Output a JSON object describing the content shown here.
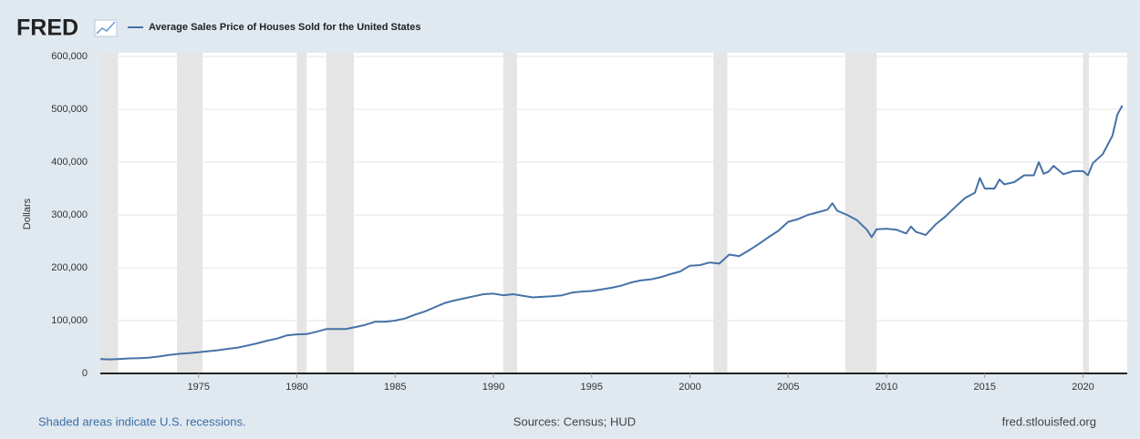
{
  "chart_data": {
    "type": "line",
    "brand": "FRED",
    "y_label": "Dollars",
    "note": "Shaded areas indicate U.S. recessions.",
    "source": "Sources: Census; HUD",
    "site": "fred.stlouisfed.org",
    "xlim": [
      1970,
      2022.25
    ],
    "xticks": [
      1975,
      1980,
      1985,
      1990,
      1995,
      2000,
      2005,
      2010,
      2015,
      2020
    ],
    "ylim": [
      0,
      600000
    ],
    "yticks": [
      0,
      {
        "value": 100000,
        "label": "100,000"
      },
      {
        "value": 200000,
        "label": "200,000"
      },
      {
        "value": 300000,
        "label": "300,000"
      },
      {
        "value": 400000,
        "label": "400,000"
      },
      {
        "value": 500000,
        "label": "500,000"
      },
      {
        "value": 600000,
        "label": "600,000"
      }
    ],
    "grid": true,
    "recessions": [
      [
        1969.9,
        1970.9
      ],
      [
        1973.9,
        1975.2
      ],
      [
        1980.0,
        1980.5
      ],
      [
        1981.5,
        1982.9
      ],
      [
        1990.5,
        1991.2
      ],
      [
        2001.2,
        2001.9
      ],
      [
        2007.9,
        2009.5
      ],
      [
        2020.0,
        2020.3
      ]
    ],
    "x": [
      1970.0,
      1970.5,
      1971.0,
      1971.5,
      1972.0,
      1972.5,
      1973.0,
      1973.5,
      1974.0,
      1974.5,
      1975.0,
      1975.5,
      1976.0,
      1976.5,
      1977.0,
      1977.5,
      1978.0,
      1978.5,
      1979.0,
      1979.5,
      1980.0,
      1980.5,
      1981.0,
      1981.5,
      1982.0,
      1982.5,
      1983.0,
      1983.5,
      1984.0,
      1984.5,
      1985.0,
      1985.5,
      1986.0,
      1986.5,
      1987.0,
      1987.5,
      1988.0,
      1988.5,
      1989.0,
      1989.5,
      1990.0,
      1990.5,
      1991.0,
      1991.5,
      1992.0,
      1992.5,
      1993.0,
      1993.5,
      1994.0,
      1994.5,
      1995.0,
      1995.5,
      1996.0,
      1996.5,
      1997.0,
      1997.5,
      1998.0,
      1998.5,
      1999.0,
      1999.5,
      2000.0,
      2000.5,
      2001.0,
      2001.5,
      2002.0,
      2002.5,
      2003.0,
      2003.5,
      2004.0,
      2004.5,
      2005.0,
      2005.5,
      2006.0,
      2006.5,
      2007.0,
      2007.25,
      2007.5,
      2008.0,
      2008.5,
      2009.0,
      2009.25,
      2009.5,
      2010.0,
      2010.5,
      2011.0,
      2011.25,
      2011.5,
      2012.0,
      2012.5,
      2013.0,
      2013.5,
      2014.0,
      2014.5,
      2014.75,
      2015.0,
      2015.5,
      2015.75,
      2016.0,
      2016.5,
      2017.0,
      2017.5,
      2017.75,
      2018.0,
      2018.25,
      2018.5,
      2019.0,
      2019.5,
      2020.0,
      2020.25,
      2020.5,
      2021.0,
      2021.5,
      2021.75,
      2022.0
    ],
    "series": [
      {
        "name": "Average Sales Price of Houses Sold for the United States",
        "color": "#4572a7",
        "values": [
          27000,
          26500,
          27500,
          28500,
          29000,
          30000,
          32000,
          35000,
          37000,
          38500,
          40000,
          42000,
          44000,
          46500,
          49000,
          53000,
          57000,
          62000,
          66000,
          72000,
          74000,
          74500,
          79000,
          84000,
          84000,
          84000,
          88000,
          92000,
          98000,
          98000,
          100000,
          104000,
          111000,
          117000,
          125000,
          133000,
          138000,
          142000,
          146000,
          150000,
          151000,
          148000,
          150000,
          147000,
          144000,
          145000,
          146000,
          148000,
          153000,
          155000,
          156000,
          159000,
          162000,
          166000,
          172000,
          176000,
          178000,
          182000,
          188000,
          193000,
          204000,
          205000,
          210000,
          208000,
          225000,
          222000,
          233000,
          245000,
          258000,
          270000,
          287000,
          292000,
          300000,
          305000,
          310000,
          322000,
          308000,
          300000,
          290000,
          272000,
          258000,
          273000,
          274000,
          272000,
          265000,
          278000,
          268000,
          262000,
          282000,
          297000,
          315000,
          332000,
          342000,
          370000,
          350000,
          350000,
          367000,
          358000,
          362000,
          375000,
          375000,
          400000,
          378000,
          382000,
          393000,
          377000,
          383000,
          383000,
          375000,
          398000,
          415000,
          450000,
          490000,
          507000
        ]
      }
    ]
  }
}
